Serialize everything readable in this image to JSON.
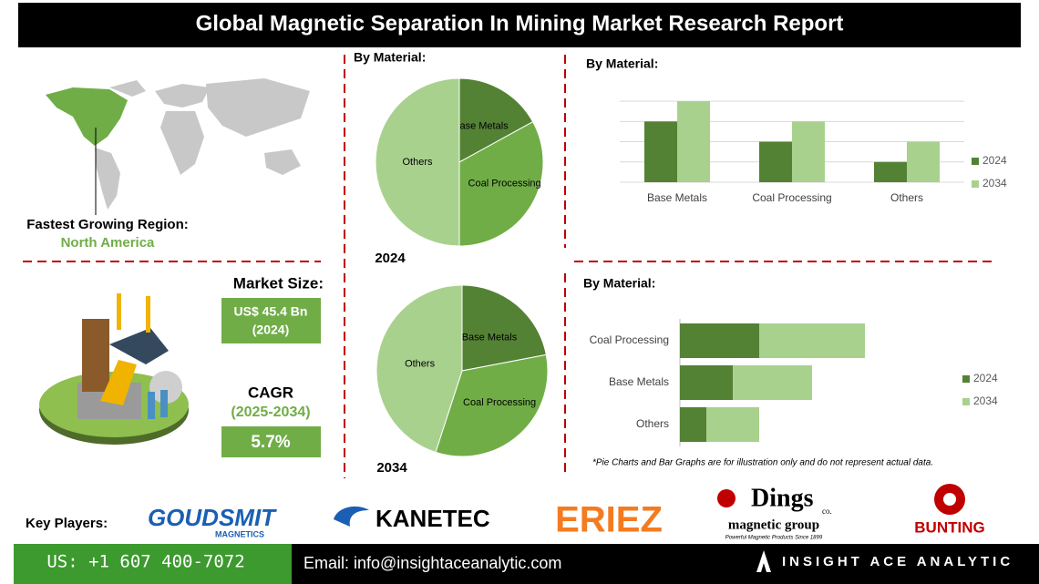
{
  "header": {
    "title": "Global Magnetic Separation In Mining Market Research Report"
  },
  "region": {
    "label": "Fastest Growing Region:",
    "value": "North America"
  },
  "market_size": {
    "label": "Market Size:",
    "value": "US$ 45.4 Bn",
    "year": "(2024)"
  },
  "cagr": {
    "label": "CAGR",
    "period": "(2025-2034)",
    "value": "5.7%"
  },
  "chart_data": [
    {
      "type": "pie",
      "title": "By Material:",
      "annotation": "2024",
      "categories": [
        "Base Metals",
        "Coal Processing",
        "Others"
      ],
      "values": [
        17,
        33,
        50
      ],
      "colors": [
        "#548235",
        "#70ad47",
        "#a9d18e"
      ]
    },
    {
      "type": "pie",
      "annotation": "2034",
      "categories": [
        "Base Metals",
        "Coal Processing",
        "Others"
      ],
      "values": [
        22,
        33,
        45
      ],
      "colors": [
        "#548235",
        "#70ad47",
        "#a9d18e"
      ]
    },
    {
      "type": "bar",
      "title": "By Material:",
      "categories": [
        "Base Metals",
        "Coal Processing",
        "Others"
      ],
      "series": [
        {
          "name": "2024",
          "color": "#548235",
          "values": [
            3,
            2,
            1
          ]
        },
        {
          "name": "2034",
          "color": "#a9d18e",
          "values": [
            4,
            3,
            2
          ]
        }
      ],
      "ylim": [
        0,
        4.5
      ],
      "yticks": [
        0,
        1,
        2,
        3,
        4
      ],
      "grid": true,
      "legend": "right"
    },
    {
      "type": "hbar",
      "stacked": true,
      "title": "By Material:",
      "categories": [
        "Coal Processing",
        "Base Metals",
        "Others"
      ],
      "series": [
        {
          "name": "2024",
          "color": "#548235",
          "values": [
            3,
            2,
            1
          ]
        },
        {
          "name": "2034",
          "color": "#a9d18e",
          "values": [
            4,
            3,
            2
          ]
        }
      ],
      "xlim": [
        0,
        10
      ],
      "legend": "right",
      "note": "*Pie Charts and Bar Graphs are for illustration only and do not represent actual data."
    }
  ],
  "key_players": {
    "label": "Key Players:",
    "logos": [
      {
        "name": "GOUDSMIT",
        "sub": "MAGNETICS"
      },
      {
        "name": "KANETEC"
      },
      {
        "name": "ERIEZ"
      },
      {
        "name": "Dings",
        "mark": "co.",
        "sub": "magnetic group",
        "tagline": "Powerful Magnetic Products Since 1899"
      },
      {
        "name": "BUNTING"
      }
    ]
  },
  "footer": {
    "phone": "US: +1 607 400-7072",
    "email": "Email: info@insightaceanalytic.com",
    "brand": "INSIGHT ACE ANALYTIC"
  }
}
